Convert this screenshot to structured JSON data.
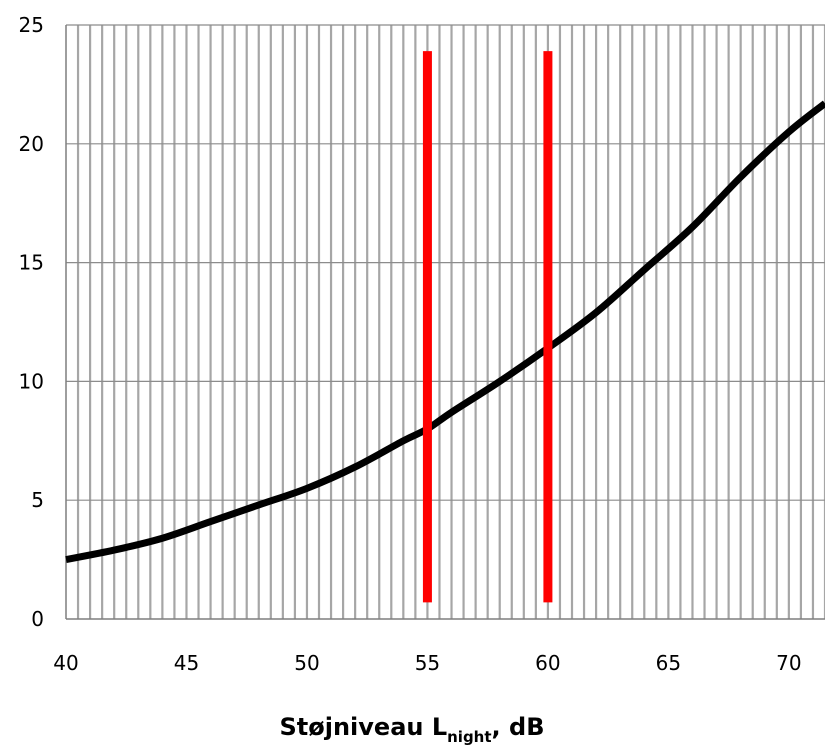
{
  "chart_data": {
    "type": "line",
    "title": "",
    "xlabel": {
      "main": "Støjniveau L",
      "subscript": "night",
      "suffix": ", dB"
    },
    "ylabel": "",
    "xlim": [
      40,
      71.5
    ],
    "ylim": [
      0,
      25
    ],
    "x_ticks": [
      "40",
      "45",
      "50",
      "55",
      "60",
      "65",
      "70"
    ],
    "y_ticks": [
      "0",
      "5",
      "10",
      "15",
      "20",
      "25"
    ],
    "grid": {
      "vertical": true,
      "vertical_step": 0.5,
      "horizontal": true,
      "horizontal_step": 5
    },
    "series": [
      {
        "color": "#000000",
        "x": [
          40,
          42,
          44,
          46,
          48,
          50,
          52,
          54,
          55,
          56,
          58,
          60,
          62,
          64,
          66,
          68,
          70,
          71.5
        ],
        "values": [
          2.5,
          2.9,
          3.4,
          4.1,
          4.8,
          5.5,
          6.4,
          7.5,
          8.0,
          8.7,
          10.0,
          11.4,
          12.9,
          14.7,
          16.5,
          18.6,
          20.5,
          21.7
        ]
      }
    ],
    "markers": [
      {
        "x": 55,
        "y_from": 0.7,
        "y_to": 23.9,
        "color": "#ff0000"
      },
      {
        "x": 60,
        "y_from": 0.7,
        "y_to": 23.9,
        "color": "#ff0000"
      }
    ]
  }
}
